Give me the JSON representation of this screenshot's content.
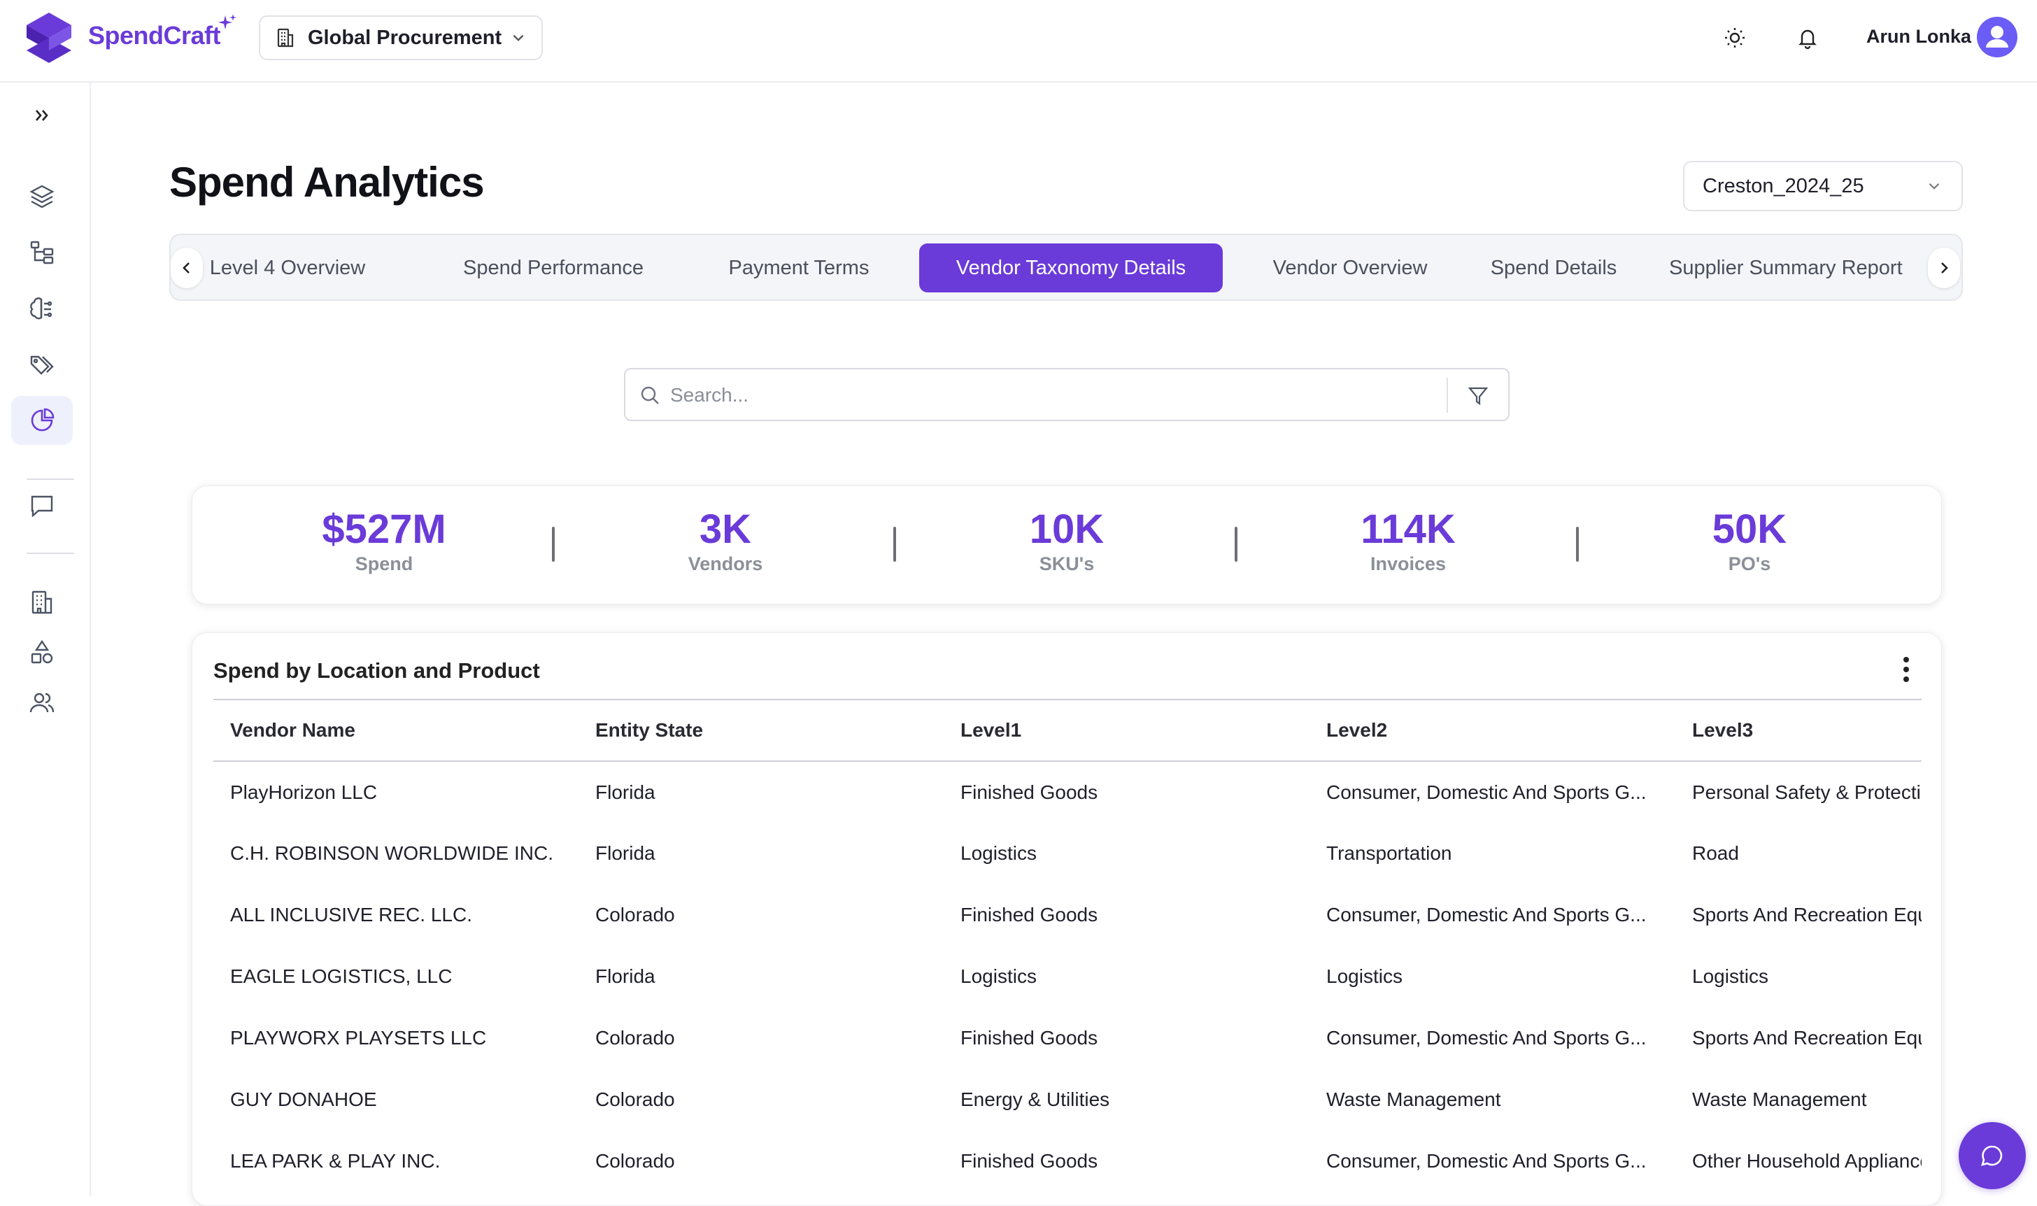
{
  "brand": {
    "name": "SpendCraft"
  },
  "header": {
    "org_selector": "Global Procurement",
    "user_name": "Arun Lonka"
  },
  "sidebar": {
    "items": [
      {
        "icon": "expand-icon"
      },
      {
        "icon": "layers-icon"
      },
      {
        "icon": "hierarchy-icon"
      },
      {
        "icon": "brain-icon"
      },
      {
        "icon": "tags-icon"
      },
      {
        "icon": "pie-chart-icon",
        "active": true
      },
      {
        "icon": "message-icon"
      },
      {
        "icon": "building-icon"
      },
      {
        "icon": "shapes-icon"
      },
      {
        "icon": "users-icon"
      }
    ]
  },
  "page": {
    "title": "Spend Analytics",
    "period": "Creston_2024_25"
  },
  "tabs": [
    {
      "label": "Level 4 Overview"
    },
    {
      "label": "Spend Performance"
    },
    {
      "label": "Payment Terms"
    },
    {
      "label": "Vendor Taxonomy Details",
      "active": true
    },
    {
      "label": "Vendor Overview"
    },
    {
      "label": "Spend Details"
    },
    {
      "label": "Supplier Summary Report"
    }
  ],
  "search": {
    "placeholder": "Search..."
  },
  "kpis": [
    {
      "value": "$527M",
      "label": "Spend"
    },
    {
      "value": "3K",
      "label": "Vendors"
    },
    {
      "value": "10K",
      "label": "SKU's"
    },
    {
      "value": "114K",
      "label": "Invoices"
    },
    {
      "value": "50K",
      "label": "PO's"
    }
  ],
  "table": {
    "title": "Spend by Location and Product",
    "columns": [
      "Vendor Name",
      "Entity State",
      "Level1",
      "Level2",
      "Level3"
    ],
    "rows": [
      [
        "PlayHorizon LLC",
        "Florida",
        "Finished Goods",
        "Consumer, Domestic And Sports G...",
        "Personal Safety & Protection"
      ],
      [
        "C.H. ROBINSON WORLDWIDE INC.",
        "Florida",
        "Logistics",
        "Transportation",
        "Road"
      ],
      [
        "ALL INCLUSIVE REC. LLC.",
        "Colorado",
        "Finished Goods",
        "Consumer, Domestic And Sports G...",
        "Sports And Recreation Equipment"
      ],
      [
        "EAGLE LOGISTICS, LLC",
        "Florida",
        "Logistics",
        "Logistics",
        "Logistics"
      ],
      [
        "PLAYWORX PLAYSETS LLC",
        "Colorado",
        "Finished Goods",
        "Consumer, Domestic And Sports G...",
        "Sports And Recreation Equipment"
      ],
      [
        "GUY DONAHOE",
        "Colorado",
        "Energy & Utilities",
        "Waste Management",
        "Waste Management"
      ],
      [
        "LEA PARK & PLAY INC.",
        "Colorado",
        "Finished Goods",
        "Consumer, Domestic And Sports G...",
        "Other Household Appliances"
      ]
    ]
  },
  "colors": {
    "accent": "#6a3bd8",
    "kpi_label": "#8b8f98",
    "tab_bg": "#f4f5f8"
  }
}
